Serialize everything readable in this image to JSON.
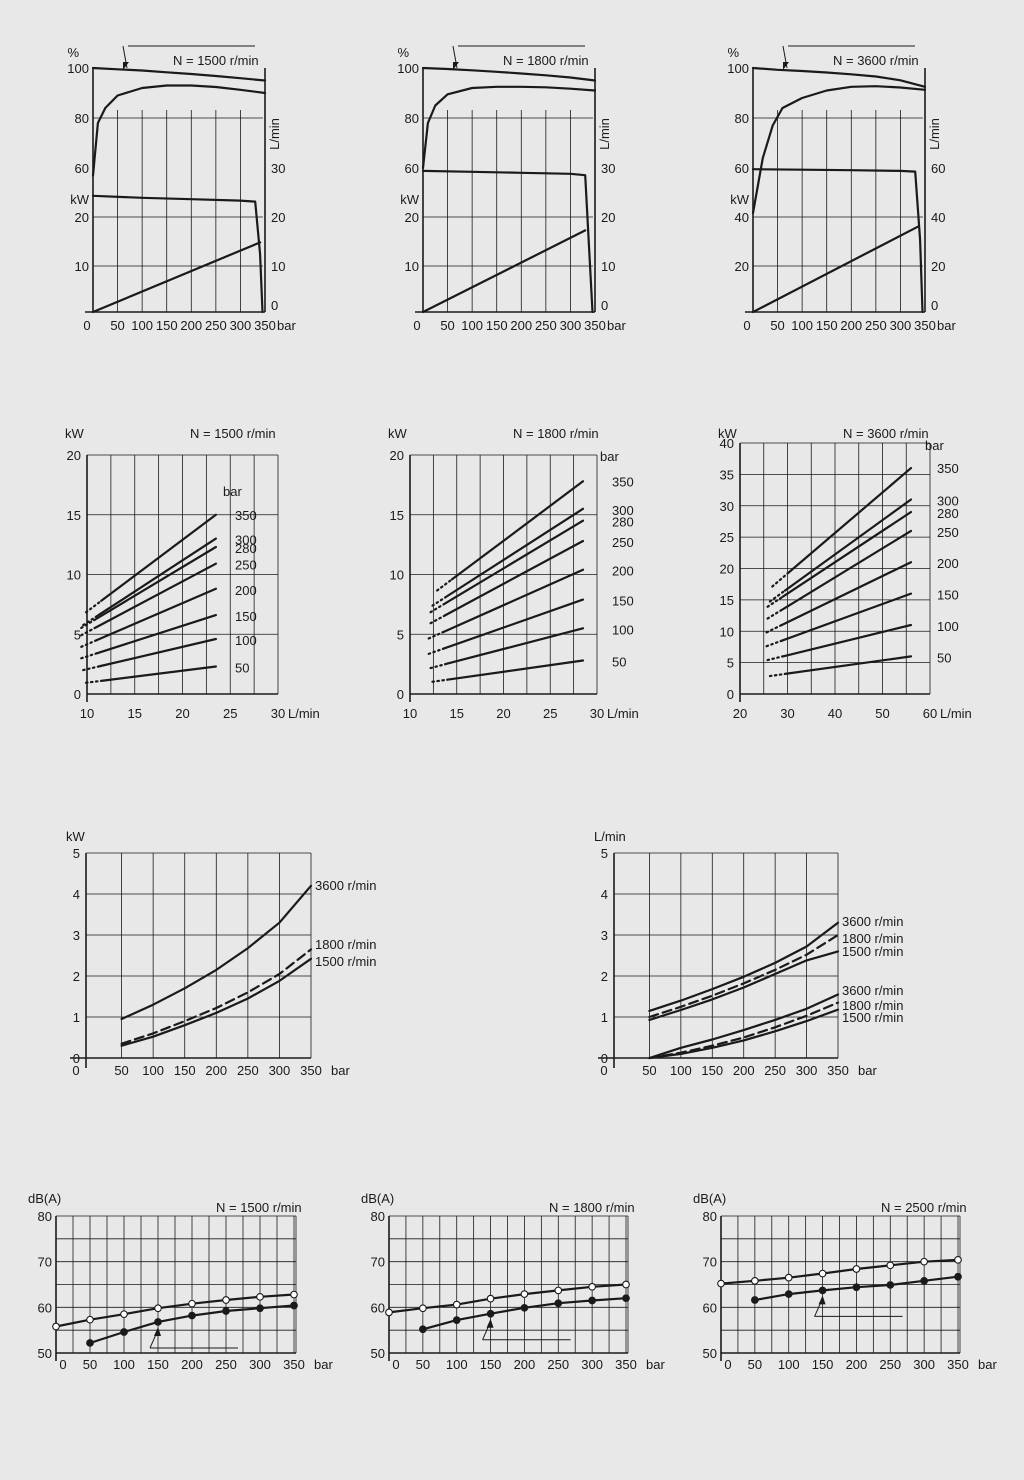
{
  "colors": {
    "background": "#e8e8e8",
    "ink": "#1a1a1a"
  },
  "chart_data": [
    {
      "type": "line",
      "panel": "performance-1500",
      "title": "N = 1500 r/min",
      "xlabel": "bar",
      "xlim": [
        0,
        350
      ],
      "xticks": [
        "0",
        "50",
        "100",
        "150",
        "200",
        "250",
        "300",
        "350"
      ],
      "left_unit_top": "%",
      "left_unit_bottom": "kW",
      "right_unit": "L/min",
      "left_ticks_top": [
        "100",
        "80",
        "60"
      ],
      "left_ticks_bottom": [
        "20",
        "10"
      ],
      "right_ticks": [
        "30",
        "20",
        "10",
        "0"
      ],
      "series": [
        {
          "axis": "percent",
          "x": [
            0,
            50,
            100,
            150,
            200,
            250,
            300,
            350
          ],
          "y": [
            100,
            99.5,
            99,
            98.3,
            97.6,
            96.8,
            95.9,
            95
          ]
        },
        {
          "axis": "percent",
          "x": [
            0,
            10,
            25,
            50,
            100,
            150,
            200,
            250,
            300,
            350
          ],
          "y": [
            57,
            78,
            84,
            89,
            92,
            93,
            93,
            92.4,
            91.3,
            90
          ]
        },
        {
          "axis": "kW",
          "x": [
            0,
            100,
            200,
            300,
            330,
            340,
            345
          ],
          "y": [
            24.2,
            23.8,
            23.5,
            23.2,
            23,
            12,
            0
          ]
        },
        {
          "axis": "L/min",
          "x": [
            0,
            340
          ],
          "y": [
            0,
            14.5
          ]
        }
      ]
    },
    {
      "type": "line",
      "panel": "performance-1800",
      "title": "N = 1800 r/min",
      "xlabel": "bar",
      "xlim": [
        0,
        350
      ],
      "xticks": [
        "0",
        "50",
        "100",
        "150",
        "200",
        "250",
        "300",
        "350"
      ],
      "left_unit_top": "%",
      "left_unit_bottom": "kW",
      "right_unit": "L/min",
      "left_ticks_top": [
        "100",
        "80",
        "60"
      ],
      "left_ticks_bottom": [
        "20",
        "10"
      ],
      "right_ticks": [
        "30",
        "20",
        "10",
        "0"
      ],
      "series": [
        {
          "axis": "percent",
          "x": [
            0,
            50,
            100,
            150,
            200,
            250,
            300,
            350
          ],
          "y": [
            100,
            99.6,
            99.1,
            98.5,
            97.8,
            97.1,
            96.2,
            95
          ]
        },
        {
          "axis": "percent",
          "x": [
            0,
            10,
            25,
            50,
            100,
            150,
            200,
            250,
            300,
            350
          ],
          "y": [
            60,
            78,
            85,
            89.5,
            92,
            92.5,
            92.5,
            92.3,
            91.7,
            91
          ]
        },
        {
          "axis": "kW",
          "x": [
            0,
            100,
            200,
            300,
            330,
            345
          ],
          "y": [
            29.4,
            29.2,
            29,
            28.8,
            28.5,
            0
          ]
        },
        {
          "axis": "L/min",
          "x": [
            0,
            330
          ],
          "y": [
            0,
            17
          ]
        }
      ]
    },
    {
      "type": "line",
      "panel": "performance-3600",
      "title": "N = 3600 r/min",
      "xlabel": "bar",
      "xlim": [
        0,
        350
      ],
      "xticks": [
        "0",
        "50",
        "100",
        "150",
        "200",
        "250",
        "300",
        "350"
      ],
      "left_unit_top": "%",
      "left_unit_bottom": "kW",
      "right_unit": "L/min",
      "left_ticks_top": [
        "100",
        "80",
        "60"
      ],
      "left_ticks_bottom": [
        "40",
        "20"
      ],
      "right_ticks": [
        "60",
        "40",
        "20",
        "0"
      ],
      "series": [
        {
          "axis": "percent",
          "x": [
            0,
            50,
            100,
            150,
            200,
            250,
            300,
            350
          ],
          "y": [
            100,
            99.3,
            98.8,
            98.2,
            97.5,
            96.6,
            95.1,
            92.5
          ]
        },
        {
          "axis": "percent",
          "x": [
            0,
            20,
            40,
            60,
            100,
            150,
            200,
            250,
            300,
            350
          ],
          "y": [
            42,
            64,
            77,
            84,
            88,
            91,
            92.5,
            92.7,
            92.2,
            91.3
          ]
        },
        {
          "axis": "kW",
          "x": [
            0,
            100,
            200,
            300,
            330,
            340,
            345
          ],
          "y": [
            59.5,
            59.3,
            59.1,
            58.8,
            58.5,
            30,
            0
          ]
        },
        {
          "axis": "L/min",
          "x": [
            0,
            335
          ],
          "y": [
            0,
            35.5
          ]
        }
      ]
    },
    {
      "type": "line",
      "panel": "power-vs-flow-1500",
      "title": "N = 1500 r/min",
      "ylabel": "kW",
      "xlabel": "L/min",
      "xlim": [
        10,
        30
      ],
      "ylim": [
        0,
        20
      ],
      "xticks": [
        "10",
        "15",
        "20",
        "25",
        "30"
      ],
      "yticks": [
        "0",
        "5",
        "10",
        "15",
        "20"
      ],
      "series_unit": "bar",
      "series": [
        {
          "name": "350",
          "x": [
            11.5,
            23.5
          ],
          "y": [
            7.8,
            15.0
          ]
        },
        {
          "name": "300",
          "x": [
            11.2,
            23.5
          ],
          "y": [
            6.6,
            13.0
          ]
        },
        {
          "name": "280",
          "x": [
            11.0,
            23.5
          ],
          "y": [
            6.3,
            12.3
          ]
        },
        {
          "name": "250",
          "x": [
            11.0,
            23.5
          ],
          "y": [
            5.6,
            10.9
          ]
        },
        {
          "name": "200",
          "x": [
            11.0,
            23.5
          ],
          "y": [
            4.5,
            8.8
          ]
        },
        {
          "name": "150",
          "x": [
            11.0,
            23.5
          ],
          "y": [
            3.4,
            6.6
          ]
        },
        {
          "name": "100",
          "x": [
            11.2,
            23.5
          ],
          "y": [
            2.3,
            4.6
          ]
        },
        {
          "name": "50",
          "x": [
            11.5,
            23.5
          ],
          "y": [
            1.1,
            2.3
          ]
        }
      ]
    },
    {
      "type": "line",
      "panel": "power-vs-flow-1800",
      "title": "N = 1800 r/min",
      "ylabel": "kW",
      "xlabel": "L/min",
      "xlim": [
        10,
        30
      ],
      "ylim": [
        0,
        20
      ],
      "xticks": [
        "10",
        "15",
        "20",
        "25",
        "30"
      ],
      "yticks": [
        "0",
        "5",
        "10",
        "15",
        "20"
      ],
      "series_unit": "bar",
      "series": [
        {
          "name": "350",
          "x": [
            14.5,
            28.5
          ],
          "y": [
            9.6,
            17.8
          ]
        },
        {
          "name": "300",
          "x": [
            14.0,
            28.5
          ],
          "y": [
            8.2,
            15.5
          ]
        },
        {
          "name": "280",
          "x": [
            13.8,
            28.5
          ],
          "y": [
            7.6,
            14.5
          ]
        },
        {
          "name": "250",
          "x": [
            13.8,
            28.5
          ],
          "y": [
            6.6,
            12.8
          ]
        },
        {
          "name": "200",
          "x": [
            13.6,
            28.5
          ],
          "y": [
            5.2,
            10.4
          ]
        },
        {
          "name": "150",
          "x": [
            13.6,
            28.5
          ],
          "y": [
            3.8,
            7.9
          ]
        },
        {
          "name": "100",
          "x": [
            13.8,
            28.5
          ],
          "y": [
            2.5,
            5.5
          ]
        },
        {
          "name": "50",
          "x": [
            14.0,
            28.5
          ],
          "y": [
            1.2,
            2.8
          ]
        }
      ]
    },
    {
      "type": "line",
      "panel": "power-vs-flow-3600",
      "title": "N = 3600 r/min",
      "ylabel": "kW",
      "xlabel": "L/min",
      "xlim": [
        20,
        60
      ],
      "ylim": [
        0,
        40
      ],
      "xticks": [
        "20",
        "30",
        "40",
        "50",
        "60"
      ],
      "yticks": [
        "0",
        "5",
        "10",
        "15",
        "20",
        "25",
        "30",
        "35",
        "40"
      ],
      "series_unit": "bar",
      "series": [
        {
          "name": "350",
          "x": [
            30.0,
            56.0
          ],
          "y": [
            19.2,
            36.0
          ]
        },
        {
          "name": "300",
          "x": [
            29.5,
            56.0
          ],
          "y": [
            16.5,
            31.0
          ]
        },
        {
          "name": "280",
          "x": [
            29.0,
            56.0
          ],
          "y": [
            15.5,
            29.0
          ]
        },
        {
          "name": "250",
          "x": [
            29.0,
            56.0
          ],
          "y": [
            13.5,
            26.0
          ]
        },
        {
          "name": "200",
          "x": [
            28.8,
            56.0
          ],
          "y": [
            11.0,
            21.0
          ]
        },
        {
          "name": "150",
          "x": [
            28.8,
            56.0
          ],
          "y": [
            8.5,
            16.0
          ]
        },
        {
          "name": "100",
          "x": [
            29.0,
            56.0
          ],
          "y": [
            6.0,
            11.0
          ]
        },
        {
          "name": "50",
          "x": [
            29.5,
            56.0
          ],
          "y": [
            3.2,
            6.0
          ]
        }
      ]
    },
    {
      "type": "line",
      "panel": "power-loss-vs-pressure",
      "ylabel": "kW",
      "xlabel": "bar",
      "xlim": [
        0,
        350
      ],
      "ylim": [
        0,
        5
      ],
      "xticks": [
        "0",
        "50",
        "100",
        "150",
        "200",
        "250",
        "300",
        "350"
      ],
      "yticks": [
        "0",
        "1",
        "2",
        "3",
        "4",
        "5"
      ],
      "series": [
        {
          "name": "3600 r/min",
          "x": [
            50,
            100,
            150,
            200,
            250,
            300,
            350
          ],
          "y": [
            0.95,
            1.3,
            1.7,
            2.15,
            2.68,
            3.3,
            4.2
          ]
        },
        {
          "name": "1800 r/min",
          "x": [
            50,
            100,
            150,
            200,
            250,
            300,
            350
          ],
          "y": [
            0.35,
            0.6,
            0.9,
            1.22,
            1.6,
            2.05,
            2.65
          ]
        },
        {
          "name": "1500 r/min",
          "x": [
            50,
            100,
            150,
            200,
            250,
            300,
            350
          ],
          "y": [
            0.3,
            0.52,
            0.8,
            1.1,
            1.45,
            1.88,
            2.42
          ]
        }
      ]
    },
    {
      "type": "line",
      "panel": "flow-loss-vs-pressure",
      "ylabel": "L/min",
      "xlabel": "bar",
      "xlim": [
        0,
        350
      ],
      "ylim": [
        0,
        5
      ],
      "xticks": [
        "0",
        "50",
        "100",
        "150",
        "200",
        "250",
        "300",
        "350"
      ],
      "yticks": [
        "0",
        "1",
        "2",
        "3",
        "4",
        "5"
      ],
      "series": [
        {
          "name": "3600 r/min",
          "x": [
            50,
            100,
            150,
            200,
            250,
            300,
            350
          ],
          "y": [
            1.15,
            1.4,
            1.68,
            1.98,
            2.32,
            2.72,
            3.3
          ]
        },
        {
          "name": "1800 r/min",
          "x": [
            50,
            100,
            150,
            200,
            250,
            300,
            350
          ],
          "y": [
            1.0,
            1.25,
            1.52,
            1.82,
            2.15,
            2.52,
            3.0
          ]
        },
        {
          "name": "1500 r/min",
          "x": [
            50,
            100,
            150,
            200,
            250,
            300,
            350
          ],
          "y": [
            0.93,
            1.17,
            1.43,
            1.72,
            2.05,
            2.38,
            2.6
          ]
        },
        {
          "name": "3600 r/min",
          "x": [
            50,
            100,
            150,
            200,
            250,
            300,
            350
          ],
          "y": [
            0.0,
            0.25,
            0.45,
            0.68,
            0.93,
            1.2,
            1.55
          ]
        },
        {
          "name": "1800 r/min",
          "x": [
            50,
            100,
            150,
            200,
            250,
            300,
            350
          ],
          "y": [
            0.0,
            0.13,
            0.3,
            0.5,
            0.75,
            1.03,
            1.35
          ]
        },
        {
          "name": "1500 r/min",
          "x": [
            50,
            100,
            150,
            200,
            250,
            300,
            350
          ],
          "y": [
            0.0,
            0.1,
            0.25,
            0.43,
            0.65,
            0.9,
            1.18
          ]
        }
      ]
    },
    {
      "type": "line",
      "panel": "noise-1500",
      "title": "N = 1500 r/min",
      "ylabel": "dB(A)",
      "xlabel": "bar",
      "xlim": [
        0,
        350
      ],
      "ylim": [
        50,
        80
      ],
      "xticks": [
        "0",
        "50",
        "100",
        "150",
        "200",
        "250",
        "300",
        "350"
      ],
      "yticks": [
        "50",
        "60",
        "70",
        "80"
      ],
      "series": [
        {
          "marker": "open",
          "x": [
            0,
            50,
            100,
            150,
            200,
            250,
            300,
            350
          ],
          "y": [
            55.8,
            57.3,
            58.5,
            59.8,
            60.8,
            61.6,
            62.3,
            62.8
          ]
        },
        {
          "marker": "filled",
          "x": [
            50,
            100,
            150,
            200,
            250,
            300,
            350
          ],
          "y": [
            52.2,
            54.6,
            56.8,
            58.2,
            59.2,
            59.8,
            60.4
          ]
        }
      ]
    },
    {
      "type": "line",
      "panel": "noise-1800",
      "title": "N = 1800 r/min",
      "ylabel": "dB(A)",
      "xlabel": "bar",
      "xlim": [
        0,
        350
      ],
      "ylim": [
        50,
        80
      ],
      "xticks": [
        "0",
        "50",
        "100",
        "150",
        "200",
        "250",
        "300",
        "350"
      ],
      "yticks": [
        "50",
        "60",
        "70",
        "80"
      ],
      "series": [
        {
          "marker": "open",
          "x": [
            0,
            50,
            100,
            150,
            200,
            250,
            300,
            350
          ],
          "y": [
            58.9,
            59.8,
            60.6,
            61.9,
            62.9,
            63.7,
            64.5,
            65.0
          ]
        },
        {
          "marker": "filled",
          "x": [
            50,
            100,
            150,
            200,
            250,
            300,
            350
          ],
          "y": [
            55.2,
            57.2,
            58.6,
            59.9,
            60.9,
            61.5,
            62.0
          ]
        }
      ]
    },
    {
      "type": "line",
      "panel": "noise-2500",
      "title": "N = 2500 r/min",
      "ylabel": "dB(A)",
      "xlabel": "bar",
      "xlim": [
        0,
        350
      ],
      "ylim": [
        50,
        80
      ],
      "xticks": [
        "0",
        "50",
        "100",
        "150",
        "200",
        "250",
        "300",
        "350"
      ],
      "yticks": [
        "50",
        "60",
        "70",
        "80"
      ],
      "series": [
        {
          "marker": "open",
          "x": [
            0,
            50,
            100,
            150,
            200,
            250,
            300,
            350
          ],
          "y": [
            65.2,
            65.8,
            66.5,
            67.4,
            68.4,
            69.2,
            70.0,
            70.4
          ]
        },
        {
          "marker": "filled",
          "x": [
            50,
            100,
            150,
            200,
            250,
            300,
            350
          ],
          "y": [
            61.6,
            62.9,
            63.7,
            64.4,
            64.9,
            65.8,
            66.7
          ]
        }
      ]
    }
  ]
}
